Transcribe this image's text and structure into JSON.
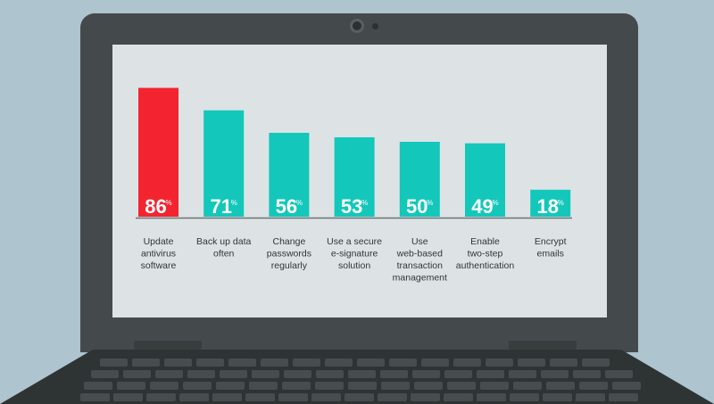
{
  "colors": {
    "highlight": "#f32430",
    "bar": "#13c7bb",
    "background": "#aec4cf",
    "laptop": "#444a4b",
    "screen": "#dde3e5"
  },
  "icons": [
    "camera-icon"
  ],
  "chart_data": {
    "type": "bar",
    "title": "",
    "xlabel": "",
    "ylabel": "",
    "ylim": [
      0,
      100
    ],
    "grid": false,
    "unit": "%",
    "highlight_index": 0,
    "categories": [
      [
        "Update",
        "antivirus",
        "software"
      ],
      [
        "Back up data",
        "often"
      ],
      [
        "Change",
        "passwords",
        "regularly"
      ],
      [
        "Use a secure",
        "e-signature",
        "solution"
      ],
      [
        "Use",
        "web-based",
        "transaction",
        "management"
      ],
      [
        "Enable",
        "two-step",
        "authentication"
      ],
      [
        "Encrypt",
        "emails"
      ]
    ],
    "values": [
      86,
      71,
      56,
      53,
      50,
      49,
      18
    ]
  }
}
